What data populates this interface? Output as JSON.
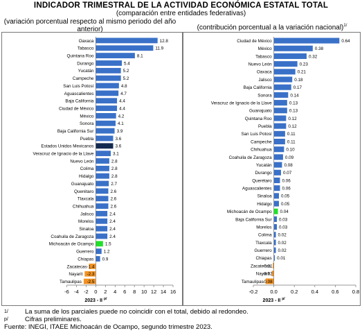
{
  "header": {
    "title": "INDICADOR TRIMESTRAL DE LA ACTIVIDAD ECONÓMICA ESTATAL TOTAL",
    "subtitle": "(comparación entre entidades federativas)"
  },
  "footnotes": {
    "note1_mark": "1/",
    "note1_text": "La suma de los parciales puede no coincidir con el total, debido al redondeo.",
    "notep_mark": "p/",
    "notep_text": "Cifras preliminares.",
    "source": "Fuente: INEGI, ITAEE Michoacán de Ocampo, segundo trimestre 2023."
  },
  "chart_data": [
    {
      "type": "bar",
      "orientation": "horizontal",
      "caption": "(variación porcentual respecto al mismo periodo del año anterior)",
      "xlabel": "2023 - II p/",
      "xlim": [
        -6,
        16
      ],
      "xticks": [
        "-6",
        "-4",
        "-2",
        "0",
        "2",
        "4",
        "6",
        "8",
        "10",
        "12",
        "14",
        "16"
      ],
      "grid": false,
      "colors": {
        "default": "#3a71c8",
        "national": "#132a50",
        "highlight": "#22e02a",
        "negative": "#f39322"
      },
      "categories": [
        "Oaxaca",
        "Tabasco",
        "Quintana Roo",
        "Durango",
        "Yucatán",
        "Campeche",
        "San Luis Potosí",
        "Aguascalientes",
        "Baja California",
        "Ciudad de México",
        "México",
        "Sonora",
        "Baja California Sur",
        "Puebla",
        "Estados Unidos Mexicanos",
        "Veracruz de Ignacio de la Llave",
        "Nuevo León",
        "Colima",
        "Hidalgo",
        "Guanajuato",
        "Querétaro",
        "Tlaxcala",
        "Chihuahua",
        "Jalisco",
        "Morelos",
        "Sinaloa",
        "Coahuila de Zaragoza",
        "Michoacán de Ocampo",
        "Guerrero",
        "Chiapas",
        "Zacatecas",
        "Nayarit",
        "Tamaulipas"
      ],
      "values": [
        12.8,
        11.9,
        8.1,
        5.4,
        5.2,
        5.2,
        4.8,
        4.7,
        4.4,
        4.4,
        4.2,
        4.1,
        3.9,
        3.6,
        3.6,
        3.1,
        2.8,
        2.8,
        2.8,
        2.7,
        2.6,
        2.6,
        2.6,
        2.4,
        2.4,
        2.4,
        2.4,
        1.5,
        1.2,
        0.9,
        -1.4,
        -2.3,
        -2.5
      ],
      "value_labels": [
        "12.8",
        "11.9",
        "8.1",
        "5.4",
        "5.2",
        "5.2",
        "4.8",
        "4.7",
        "4.4",
        "4.4",
        "4.2",
        "4.1",
        "3.9",
        "3.6",
        "3.6",
        "3.1",
        "2.8",
        "2.8",
        "2.8",
        "2.7",
        "2.6",
        "2.6",
        "2.6",
        "2.4",
        "2.4",
        "2.4",
        "2.4",
        "1.5",
        "1.2",
        "0.9",
        "-1.4",
        "-2.3",
        "-2.5"
      ],
      "national": "Estados Unidos Mexicanos",
      "highlight": "Michoacán de Ocampo"
    },
    {
      "type": "bar",
      "orientation": "horizontal",
      "caption": "(contribución porcentual a la variación nacional)",
      "caption_mark": "1/",
      "xlabel": "2023 - II p/",
      "xlim": [
        -0.2,
        0.8
      ],
      "xticks": [
        "-0.2",
        "0.0",
        "0.2",
        "0.4",
        "0.6",
        "0.8"
      ],
      "grid": false,
      "colors": {
        "default": "#3a71c8",
        "highlight": "#22e02a",
        "negative": "#f39322"
      },
      "categories": [
        "Ciudad de México",
        "México",
        "Tabasco",
        "Nuevo León",
        "Oaxaca",
        "Jalisco",
        "Baja California",
        "Sonora",
        "Veracruz de Ignacio de la Llave",
        "Guanajuato",
        "Quintana Roo",
        "Puebla",
        "San Luis Potosí",
        "Campeche",
        "Chihuahua",
        "Coahuila de Zaragoza",
        "Yucatán",
        "Durango",
        "Querétaro",
        "Aguascalientes",
        "Sinaloa",
        "Hidalgo",
        "Michoacán de Ocampo",
        "Baja California Sur",
        "Morelos",
        "Colima",
        "Tlaxcala",
        "Guerrero",
        "Chiapas",
        "Zacatecas",
        "Nayarit",
        "Tamaulipas"
      ],
      "values": [
        0.64,
        0.38,
        0.32,
        0.23,
        0.21,
        0.18,
        0.17,
        0.14,
        0.13,
        0.13,
        0.12,
        0.12,
        0.11,
        0.11,
        0.1,
        0.09,
        0.08,
        0.07,
        0.06,
        0.06,
        0.05,
        0.05,
        0.04,
        0.03,
        0.03,
        0.02,
        0.02,
        0.02,
        0.01,
        -0.01,
        -0.02,
        -0.08
      ],
      "value_labels": [
        "0.64",
        "0.38",
        "0.32",
        "0.23",
        "0.21",
        "0.18",
        "0.17",
        "0.14",
        "0.13",
        "0.13",
        "0.12",
        "0.12",
        "0.11",
        "0.11",
        "0.10",
        "0.09",
        "0.08",
        "0.07",
        "0.06",
        "0.06",
        "0.05",
        "0.05",
        "0.04",
        "0.03",
        "0.03",
        "0.02",
        "0.02",
        "0.02",
        "0.01",
        "-0.01",
        "-0.02",
        "-0.08"
      ],
      "highlight": "Michoacán de Ocampo"
    }
  ]
}
